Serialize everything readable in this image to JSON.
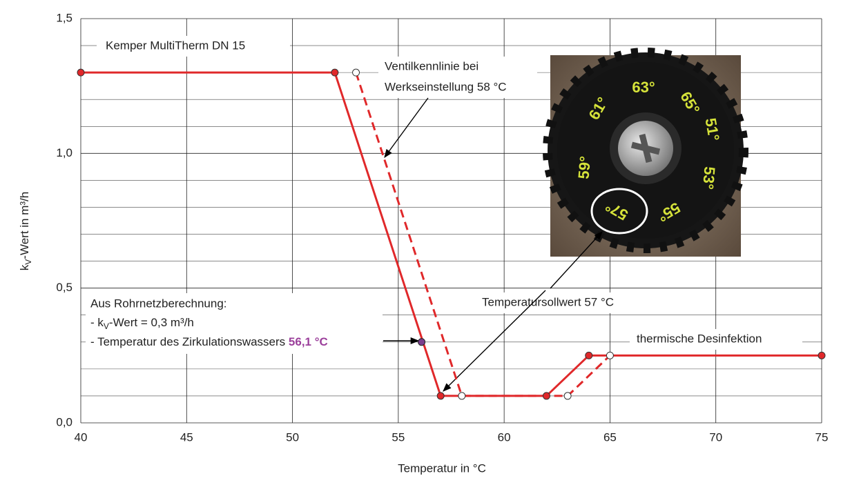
{
  "chart_data": {
    "type": "line",
    "xlabel": "Temperatur  in °C",
    "ylabel_parts": [
      "k",
      "V",
      "-Wert  in m³/h"
    ],
    "xlim": [
      40,
      75
    ],
    "xticks": [
      40,
      45,
      50,
      55,
      60,
      65,
      70,
      75
    ],
    "ylim": [
      0,
      1.5
    ],
    "yticks": [
      {
        "value": 0,
        "label": "0,0"
      },
      {
        "value": 0.5,
        "label": "0,5"
      },
      {
        "value": 1,
        "label": "1,0"
      },
      {
        "value": 1.5,
        "label": "1,5"
      }
    ],
    "minor_yticks": [
      0.1,
      0.2,
      0.3,
      0.4,
      0.6,
      0.7,
      0.8,
      0.9,
      1.1,
      1.2,
      1.3,
      1.4
    ],
    "grid": true,
    "series": [
      {
        "color": "#e0282a",
        "dash": false,
        "marker_fill": "#e0282a",
        "x": [
          40,
          52,
          57,
          62,
          64,
          75
        ],
        "values": [
          1.3,
          1.3,
          0.1,
          0.1,
          0.25,
          0.25
        ]
      },
      {
        "color": "#e0282a",
        "dash": true,
        "marker_fill": "#ffffff",
        "x": [
          53,
          58,
          63,
          65
        ],
        "values": [
          1.3,
          0.1,
          0.1,
          0.25
        ]
      }
    ],
    "highlight": {
      "x": 56.1,
      "value": 0.3,
      "color": "#7b3f8f"
    },
    "annotations": {
      "device": "Kemper MultiTherm DN 15",
      "factory_line1": "Ventilkennlinie bei",
      "factory_line2": "Werkseinstellung 58 °C",
      "calc_title": "Aus Rohrnetzberechnung:",
      "calc_kv_parts": [
        "- k",
        "V",
        "-Wert = 0,3 m³/h"
      ],
      "calc_temp": "- Temperatur des Zirkulationswassers ",
      "calc_temp_value": "56,1 °C",
      "setpoint": "Temperatursollwert 57 °C",
      "disinfection": "thermische Desinfektion"
    },
    "photo_labels": [
      "63°",
      "65°",
      "51°",
      "61°",
      "59°",
      "53°",
      "57°",
      "55°"
    ]
  }
}
